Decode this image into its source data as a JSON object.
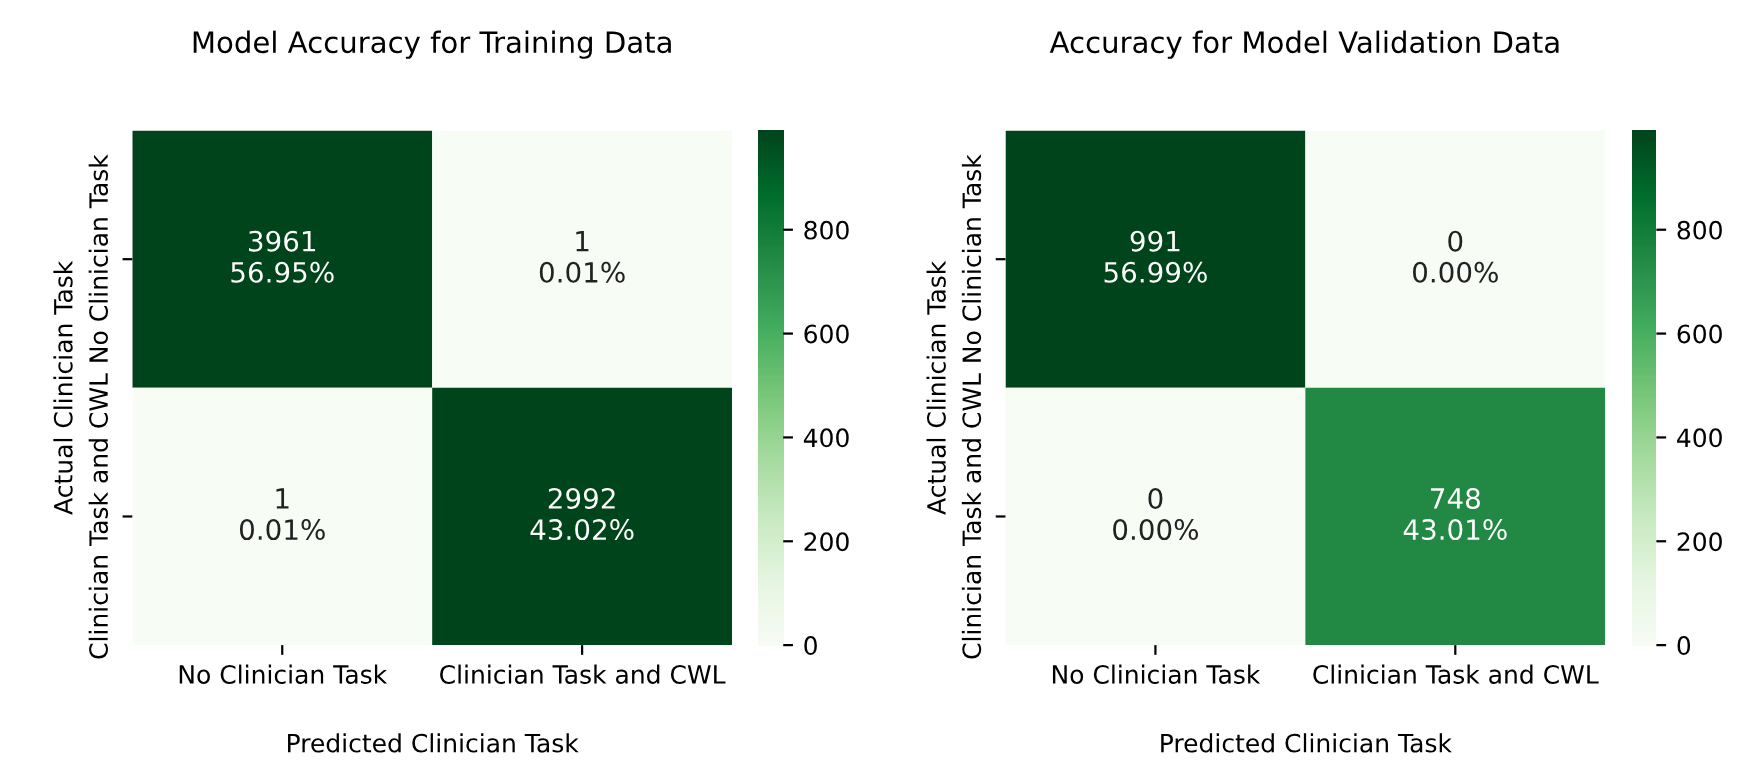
{
  "chart_data": [
    {
      "type": "heatmap",
      "title": "Model Accuracy for Training Data",
      "xlabel": "Predicted Clinician Task",
      "ylabel": "Actual Clinician Task",
      "categories": [
        "No Clinician Task",
        "Clinician Task and CWL"
      ],
      "y_categories": [
        "No Clinician Task",
        "Clinician Task and CWL"
      ],
      "cells": [
        [
          3961,
          1
        ],
        [
          1,
          2992
        ]
      ],
      "cell_labels": [
        [
          "3961\n56.95%",
          "1\n0.01%"
        ],
        [
          "1\n0.01%",
          "2992\n43.02%"
        ]
      ],
      "clim": [
        0,
        991
      ],
      "cticks": [
        0,
        200,
        400,
        600,
        800
      ]
    },
    {
      "type": "heatmap",
      "title": "Accuracy for Model Validation Data",
      "xlabel": "Predicted Clinician Task",
      "ylabel": "Actual Clinician Task",
      "categories": [
        "No Clinician Task",
        "Clinician Task and CWL"
      ],
      "y_categories": [
        "No Clinician Task",
        "Clinician Task and CWL"
      ],
      "cells": [
        [
          991,
          0
        ],
        [
          0,
          748
        ]
      ],
      "cell_labels": [
        [
          "991\n56.99%",
          "0\n0.00%"
        ],
        [
          "0\n0.00%",
          "748\n43.01%"
        ]
      ],
      "clim": [
        0,
        991
      ],
      "cticks": [
        0,
        200,
        400,
        600,
        800
      ]
    }
  ]
}
